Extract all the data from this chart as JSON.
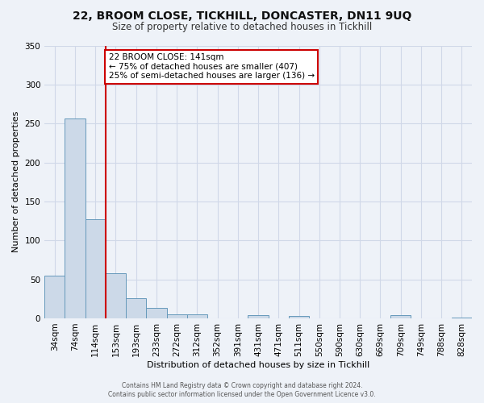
{
  "title": "22, BROOM CLOSE, TICKHILL, DONCASTER, DN11 9UQ",
  "subtitle": "Size of property relative to detached houses in Tickhill",
  "xlabel": "Distribution of detached houses by size in Tickhill",
  "ylabel": "Number of detached properties",
  "bar_labels": [
    "34sqm",
    "74sqm",
    "114sqm",
    "153sqm",
    "193sqm",
    "233sqm",
    "272sqm",
    "312sqm",
    "352sqm",
    "391sqm",
    "431sqm",
    "471sqm",
    "511sqm",
    "550sqm",
    "590sqm",
    "630sqm",
    "669sqm",
    "709sqm",
    "749sqm",
    "788sqm",
    "828sqm"
  ],
  "bar_values": [
    55,
    256,
    127,
    58,
    26,
    13,
    5,
    5,
    0,
    0,
    4,
    0,
    3,
    0,
    0,
    0,
    0,
    4,
    0,
    0,
    1
  ],
  "bar_color": "#ccd9e8",
  "bar_edge_color": "#6699bb",
  "ylim": [
    0,
    350
  ],
  "yticks": [
    0,
    50,
    100,
    150,
    200,
    250,
    300,
    350
  ],
  "vline_x_idx": 2.5,
  "vline_color": "#cc0000",
  "annotation_title": "22 BROOM CLOSE: 141sqm",
  "annotation_line1": "← 75% of detached houses are smaller (407)",
  "annotation_line2": "25% of semi-detached houses are larger (136) →",
  "annotation_box_facecolor": "#ffffff",
  "annotation_box_edgecolor": "#cc0000",
  "footer1": "Contains HM Land Registry data © Crown copyright and database right 2024.",
  "footer2": "Contains public sector information licensed under the Open Government Licence v3.0.",
  "background_color": "#eef2f8",
  "grid_color": "#d0d8e8",
  "title_fontsize": 10,
  "subtitle_fontsize": 8.5,
  "ylabel_fontsize": 8,
  "xlabel_fontsize": 8,
  "tick_fontsize": 7.5,
  "footer_fontsize": 5.5
}
